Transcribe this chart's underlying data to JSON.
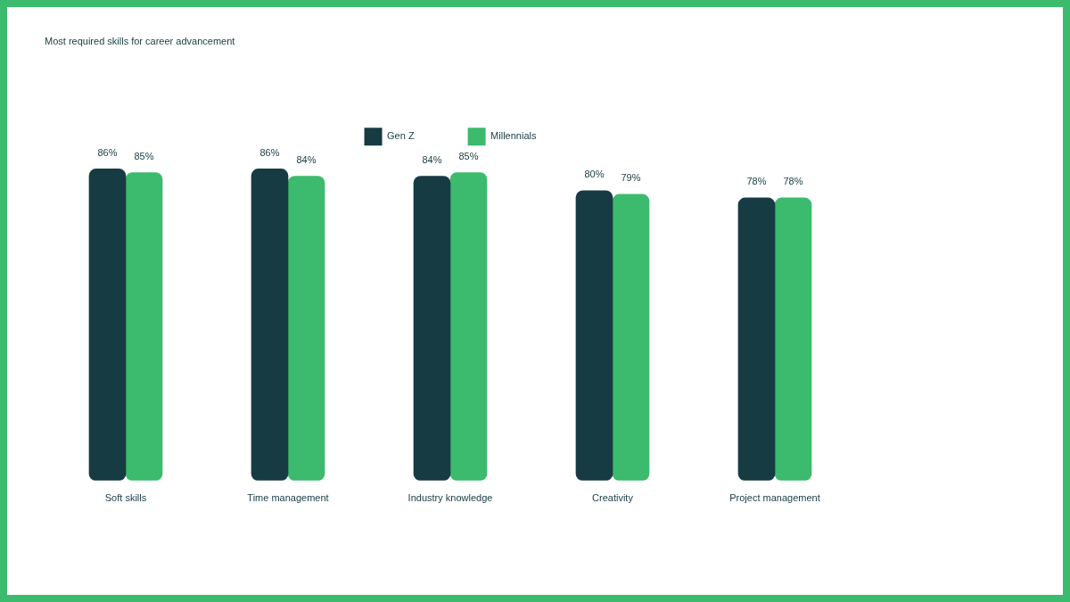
{
  "chart_data": {
    "type": "bar",
    "title": "Most required skills for career advancement",
    "categories": [
      "Soft skills",
      "Time management",
      "Industry knowledge",
      "Creativity",
      "Project management"
    ],
    "series": [
      {
        "name": "Gen Z",
        "color": "#173b42",
        "values": [
          86,
          86,
          84,
          80,
          78
        ],
        "value_labels": [
          "86%",
          "86%",
          "84%",
          "80%",
          "78%"
        ]
      },
      {
        "name": "Millennials",
        "color": "#3cba6e",
        "values": [
          85,
          84,
          85,
          79,
          78
        ],
        "value_labels": [
          "85%",
          "84%",
          "85%",
          "79%",
          "78%"
        ]
      }
    ],
    "legend": "top",
    "grid": false
  }
}
